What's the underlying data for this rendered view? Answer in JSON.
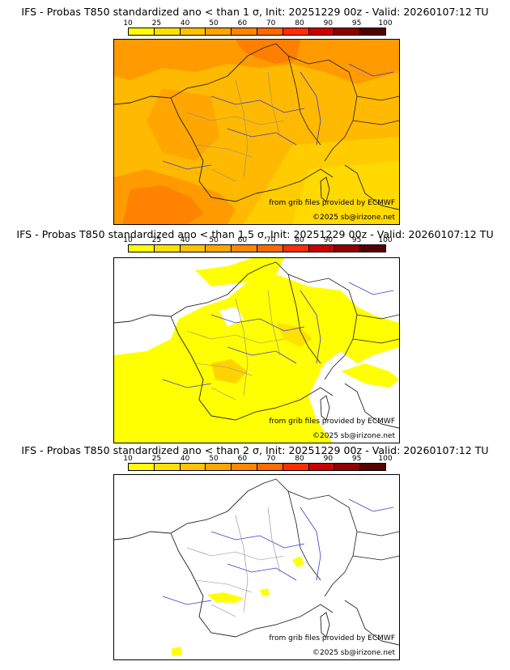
{
  "colorbar": {
    "ticks": [
      "10",
      "25",
      "40",
      "50",
      "60",
      "70",
      "80",
      "90",
      "95",
      "100"
    ],
    "colors": [
      "#ffff00",
      "#ffe100",
      "#ffc300",
      "#ffa500",
      "#ff8700",
      "#ff6900",
      "#ff2d00",
      "#cd0000",
      "#910000",
      "#550000"
    ]
  },
  "panels": [
    {
      "title": "IFS - Probas T850  standardized ano < than 1 σ, Init: 20251229 00z - Valid: 20260107:12 TU",
      "source": "from grib files provided by ECMWF",
      "copyright": "©2025 sb@irizone.net",
      "fill": "#ffb400"
    },
    {
      "title": "IFS - Probas T850  standardized ano < than 1.5 σ, Init: 20251229 00z - Valid: 20260107:12 TU",
      "source": "from grib files provided by ECMWF",
      "copyright": "©2025 sb@irizone.net",
      "fill": "#ffe100"
    },
    {
      "title": "IFS - Probas T850  standardized ano < than 2 σ, Init: 20251229 00z - Valid: 20260107:12 TU",
      "source": "from grib files provided by ECMWF",
      "copyright": "©2025 sb@irizone.net",
      "fill": "#ffff00"
    }
  ]
}
